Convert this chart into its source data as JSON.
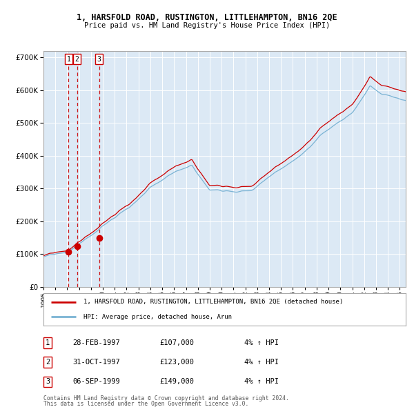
{
  "title1": "1, HARSFOLD ROAD, RUSTINGTON, LITTLEHAMPTON, BN16 2QE",
  "title2": "Price paid vs. HM Land Registry's House Price Index (HPI)",
  "bg_color": "#dce9f5",
  "red_color": "#cc0000",
  "blue_color": "#7ab3d4",
  "red_line_label": "1, HARSFOLD ROAD, RUSTINGTON, LITTLEHAMPTON, BN16 2QE (detached house)",
  "blue_line_label": "HPI: Average price, detached house, Arun",
  "transactions": [
    {
      "num": 1,
      "date": "28-FEB-1997",
      "price": 107000,
      "year": 1997.12,
      "hpi_pct": "4% ↑ HPI"
    },
    {
      "num": 2,
      "date": "31-OCT-1997",
      "price": 123000,
      "year": 1997.83,
      "hpi_pct": "4% ↑ HPI"
    },
    {
      "num": 3,
      "date": "06-SEP-1999",
      "price": 149000,
      "year": 1999.68,
      "hpi_pct": "4% ↑ HPI"
    }
  ],
  "footer1": "Contains HM Land Registry data © Crown copyright and database right 2024.",
  "footer2": "This data is licensed under the Open Government Licence v3.0.",
  "ylim": [
    0,
    720000
  ],
  "xlim_start": 1995.0,
  "xlim_end": 2025.5,
  "yticks": [
    0,
    100000,
    200000,
    300000,
    400000,
    500000,
    600000,
    700000
  ]
}
